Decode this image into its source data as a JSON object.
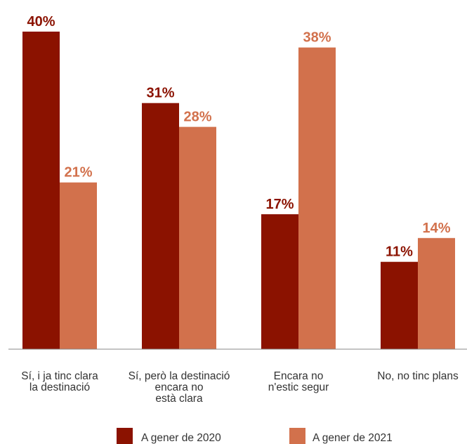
{
  "chart_data": {
    "type": "bar",
    "categories": [
      [
        "Sí, i ja tinc clara",
        "la destinació"
      ],
      [
        "Sí, però la destinació",
        "encara no",
        "està clara"
      ],
      [
        "Encara no",
        "n'estic segur"
      ],
      [
        "No, no tinc plans"
      ]
    ],
    "series": [
      {
        "name": "A gener de 2020",
        "values": [
          40,
          31,
          17,
          11
        ],
        "labels": [
          "40%",
          "31%",
          "17%",
          "11%"
        ]
      },
      {
        "name": "A gener de 2021",
        "values": [
          21,
          28,
          38,
          14
        ],
        "labels": [
          "21%",
          "28%",
          "38%",
          "14%"
        ]
      }
    ],
    "ylim": [
      0,
      40
    ],
    "grid": false,
    "legend_position": "bottom",
    "colors": {
      "series_2020": "#8b1200",
      "series_2021": "#d2714c",
      "axis": "#888888"
    }
  }
}
